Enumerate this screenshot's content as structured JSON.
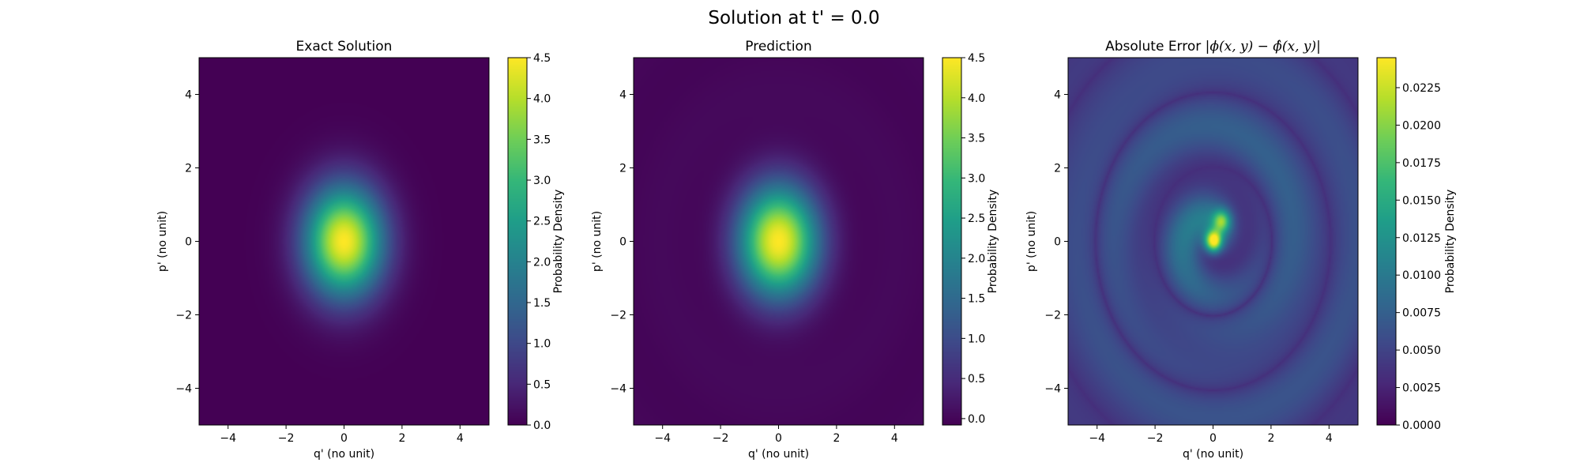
{
  "figure": {
    "suptitle": "Solution at t' = 0.0"
  },
  "colors": {
    "viridis": [
      "#440154",
      "#482878",
      "#3e4989",
      "#31688e",
      "#26828e",
      "#1f9e89",
      "#35b779",
      "#6ece58",
      "#b5de2b",
      "#fde725"
    ]
  },
  "chart_data": [
    {
      "type": "heatmap",
      "title": "Exact Solution",
      "xlabel": "q' (no unit)",
      "ylabel": "p' (no unit)",
      "xlim": [
        -5,
        5
      ],
      "ylim": [
        -5,
        5
      ],
      "xticks": [
        -4,
        -2,
        0,
        2,
        4
      ],
      "yticks": [
        -4,
        -2,
        0,
        2,
        4
      ],
      "colorbar": {
        "label": "Probability Density",
        "range": [
          0.0,
          4.5
        ],
        "ticks": [
          0.0,
          0.5,
          1.0,
          1.5,
          2.0,
          2.5,
          3.0,
          3.5,
          4.0,
          4.5
        ],
        "tick_labels": [
          "0.0",
          "0.5",
          "1.0",
          "1.5",
          "2.0",
          "2.5",
          "3.0",
          "3.5",
          "4.0",
          "4.5"
        ]
      },
      "field": "gaussian centered at (0, 0), peak ≈ 4.5, width σq ≈ 0.95, σp ≈ 1.05"
    },
    {
      "type": "heatmap",
      "title": "Prediction",
      "xlabel": "q' (no unit)",
      "ylabel": "p' (no unit)",
      "xlim": [
        -5,
        5
      ],
      "ylim": [
        -5,
        5
      ],
      "xticks": [
        -4,
        -2,
        0,
        2,
        4
      ],
      "yticks": [
        -4,
        -2,
        0,
        2,
        4
      ],
      "colorbar": {
        "label": "Probability Density",
        "range": [
          -0.08,
          4.5
        ],
        "ticks": [
          0.0,
          0.5,
          1.0,
          1.5,
          2.0,
          2.5,
          3.0,
          3.5,
          4.0,
          4.5
        ],
        "tick_labels": [
          "0.0",
          "0.5",
          "1.0",
          "1.5",
          "2.0",
          "2.5",
          "3.0",
          "3.5",
          "4.0",
          "4.5"
        ]
      },
      "field": "gaussian centered at (0, 0), peak ≈ 4.5, faint concentric ripple rings"
    },
    {
      "type": "heatmap",
      "title_prefix": "Absolute Error ",
      "title_math": "|ϕ(x, y) − ϕ̂(x, y)|",
      "xlabel": "q' (no unit)",
      "ylabel": "p' (no unit)",
      "xlim": [
        -5,
        5
      ],
      "ylim": [
        -5,
        5
      ],
      "xticks": [
        -4,
        -2,
        0,
        2,
        4
      ],
      "yticks": [
        -4,
        -2,
        0,
        2,
        4
      ],
      "colorbar": {
        "label": "Probability Density",
        "range": [
          0.0,
          0.0245
        ],
        "ticks": [
          0.0,
          0.0025,
          0.005,
          0.0075,
          0.01,
          0.0125,
          0.015,
          0.0175,
          0.02,
          0.0225
        ],
        "tick_labels": [
          "0.0000",
          "0.0025",
          "0.0050",
          "0.0075",
          "0.0100",
          "0.0125",
          "0.0150",
          "0.0175",
          "0.0200",
          "0.0225"
        ]
      },
      "field": "spiral ring error pattern, max ≈ 0.0245 near origin, ≈ 0.0025–0.005 background"
    }
  ]
}
